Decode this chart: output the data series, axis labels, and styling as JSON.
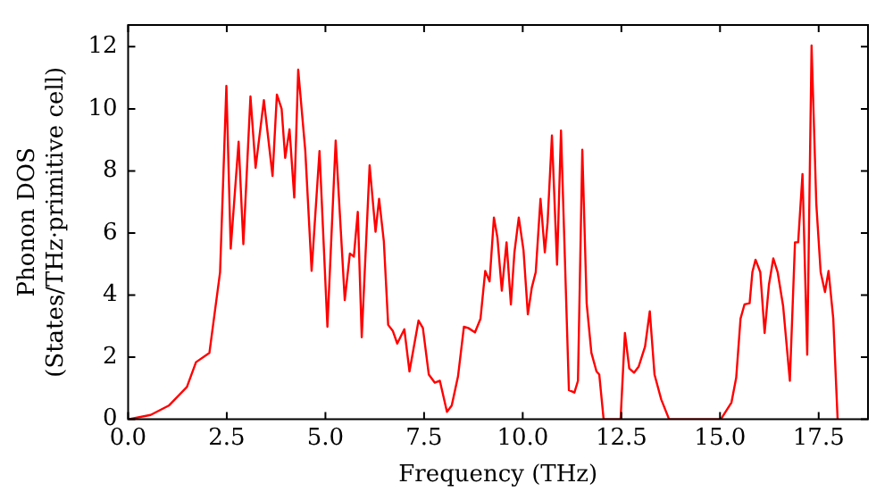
{
  "chart_data": {
    "type": "line",
    "xlabel": "Frequency (THz)",
    "ylabel": "Phonon DOS\n(States/THz·primitive cell)",
    "xlim": [
      0,
      18.75
    ],
    "ylim": [
      0,
      12.7
    ],
    "xticks": [
      {
        "value": 0,
        "label": "0.0"
      },
      {
        "value": 2.5,
        "label": "2.5"
      },
      {
        "value": 5,
        "label": "5.0"
      },
      {
        "value": 7.5,
        "label": "7.5"
      },
      {
        "value": 10,
        "label": "10.0"
      },
      {
        "value": 12.5,
        "label": "12.5"
      },
      {
        "value": 15,
        "label": "15.0"
      },
      {
        "value": 17.5,
        "label": "17.5"
      }
    ],
    "yticks": [
      0,
      2,
      4,
      6,
      8,
      10,
      12
    ],
    "grid": false,
    "legend": false,
    "marker": "none",
    "line_style": "solid",
    "series": [
      {
        "color": "#ff0000",
        "x": [
          0,
          0.57,
          1.03,
          1.49,
          1.72,
          2.06,
          2.33,
          2.49,
          2.6,
          2.8,
          2.92,
          3.1,
          3.23,
          3.44,
          3.66,
          3.77,
          3.89,
          3.98,
          4.09,
          4.21,
          4.31,
          4.49,
          4.65,
          4.85,
          5.05,
          5.26,
          5.49,
          5.62,
          5.72,
          5.82,
          5.92,
          6.12,
          6.27,
          6.36,
          6.48,
          6.59,
          6.71,
          6.82,
          7.0,
          7.13,
          7.36,
          7.47,
          7.62,
          7.77,
          7.9,
          8.08,
          8.2,
          8.36,
          8.51,
          8.62,
          8.79,
          8.93,
          9.05,
          9.16,
          9.27,
          9.36,
          9.47,
          9.59,
          9.7,
          9.79,
          9.9,
          10.02,
          10.13,
          10.23,
          10.33,
          10.45,
          10.56,
          10.63,
          10.74,
          10.87,
          10.97,
          11.17,
          11.31,
          11.4,
          11.51,
          11.62,
          11.74,
          11.87,
          11.94,
          12.05,
          12.48,
          12.59,
          12.7,
          12.82,
          12.94,
          13.1,
          13.22,
          13.34,
          13.51,
          13.71,
          15.02,
          15.29,
          15.41,
          15.52,
          15.62,
          15.75,
          15.82,
          15.9,
          16.02,
          16.13,
          16.24,
          16.35,
          16.46,
          16.6,
          16.77,
          16.9,
          16.98,
          17.09,
          17.21,
          17.32,
          17.44,
          17.55,
          17.66,
          17.75,
          17.87,
          17.98
        ],
        "values": [
          0,
          0.14,
          0.44,
          1.04,
          1.84,
          2.14,
          4.74,
          10.74,
          5.5,
          8.94,
          5.64,
          10.4,
          8.1,
          10.28,
          7.84,
          10.46,
          10.0,
          8.42,
          9.34,
          7.14,
          11.26,
          8.64,
          4.78,
          8.64,
          2.98,
          8.98,
          3.84,
          5.34,
          5.24,
          6.68,
          2.64,
          8.18,
          6.04,
          7.1,
          5.74,
          3.04,
          2.84,
          2.44,
          2.9,
          1.54,
          3.18,
          2.94,
          1.44,
          1.18,
          1.24,
          0.24,
          0.44,
          1.38,
          2.98,
          2.94,
          2.8,
          3.24,
          4.78,
          4.44,
          6.5,
          5.84,
          4.14,
          5.7,
          3.7,
          5.38,
          6.5,
          5.44,
          3.38,
          4.24,
          4.74,
          7.1,
          5.38,
          6.34,
          9.14,
          4.98,
          9.3,
          0.94,
          0.86,
          1.24,
          8.68,
          3.74,
          2.14,
          1.54,
          1.44,
          0,
          0,
          2.78,
          1.64,
          1.5,
          1.7,
          2.34,
          3.48,
          1.44,
          0.64,
          0,
          0,
          0.54,
          1.34,
          3.24,
          3.7,
          3.74,
          4.74,
          5.14,
          4.74,
          2.78,
          4.34,
          5.18,
          4.74,
          3.64,
          1.24,
          5.7,
          5.7,
          7.9,
          2.08,
          12.04,
          6.94,
          4.74,
          4.1,
          4.78,
          3.24,
          0
        ]
      }
    ]
  }
}
